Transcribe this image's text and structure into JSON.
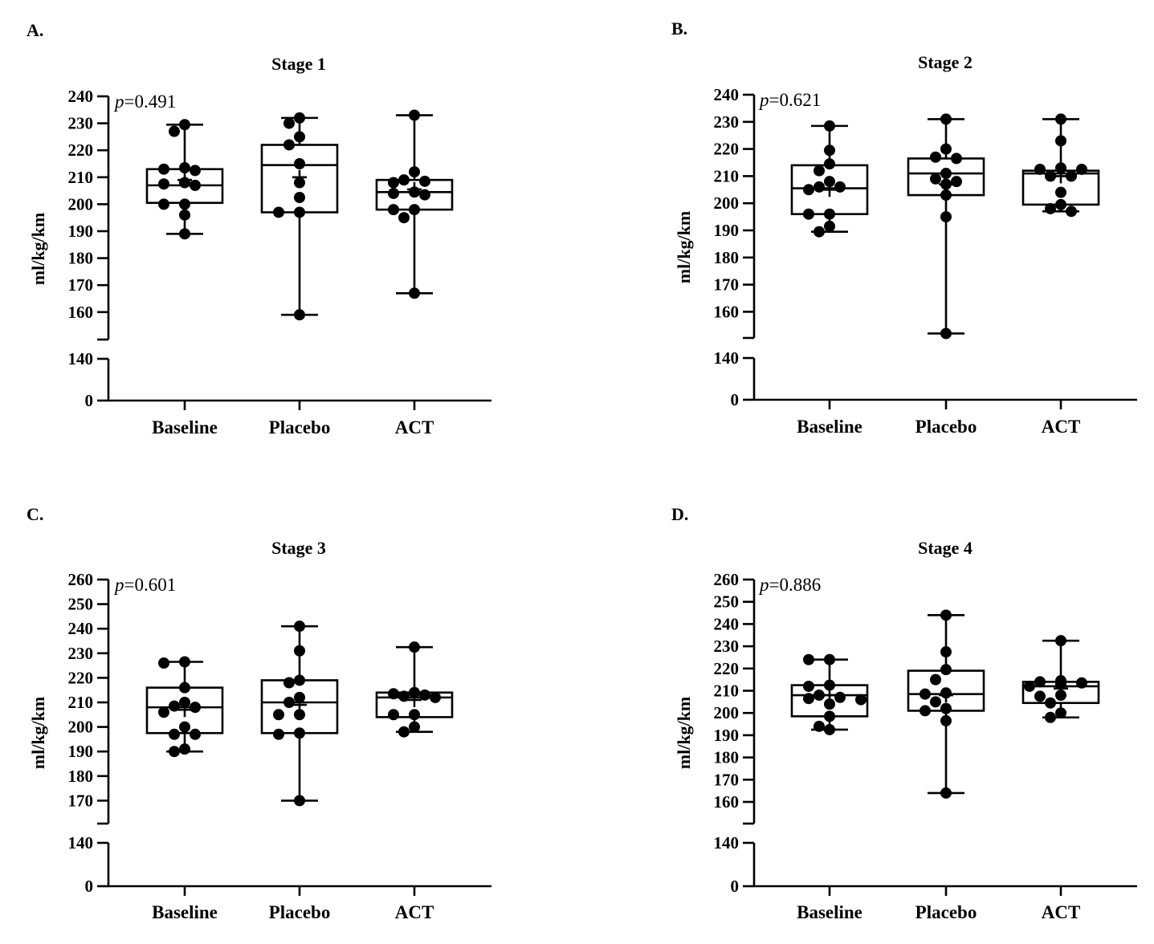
{
  "figure": {
    "name": "stage-boxplots-figure"
  },
  "chart_data": [
    {
      "panel": "A.",
      "type": "box",
      "title": "Stage 1",
      "ylabel": "ml/kg/km",
      "p_prefix": "p",
      "p_value": "=0.491",
      "categories": [
        "Baseline",
        "Placebo",
        "ACT"
      ],
      "axis_break": true,
      "lower_ticks": [
        0,
        140
      ],
      "upper_ticks": [
        160,
        170,
        180,
        190,
        200,
        210,
        220,
        230,
        240
      ],
      "upper_range": [
        150,
        240
      ],
      "groups": [
        {
          "name": "Baseline",
          "min": 189,
          "q1": 200.5,
          "median": 207,
          "q3": 213,
          "max": 229.5,
          "mean": 209,
          "points": [
            229.5,
            227,
            213.5,
            213,
            212.5,
            208,
            207.5,
            207,
            200,
            200,
            196,
            189
          ]
        },
        {
          "name": "Placebo",
          "min": 159,
          "q1": 197,
          "median": 214.5,
          "q3": 222,
          "max": 232,
          "mean": 210,
          "points": [
            232,
            230,
            225,
            222,
            215,
            208,
            202.5,
            197,
            197,
            159
          ]
        },
        {
          "name": "ACT",
          "min": 167,
          "q1": 198,
          "median": 204.5,
          "q3": 209,
          "max": 233,
          "mean": 205.5,
          "points": [
            233,
            212,
            209,
            208.5,
            208,
            204.5,
            204,
            203.5,
            198,
            198,
            195,
            167
          ]
        }
      ]
    },
    {
      "panel": "B.",
      "type": "box",
      "title": "Stage 2",
      "ylabel": "ml/kg/km",
      "p_prefix": "p",
      "p_value": "=0.621",
      "categories": [
        "Baseline",
        "Placebo",
        "ACT"
      ],
      "axis_break": true,
      "lower_ticks": [
        0,
        140
      ],
      "upper_ticks": [
        160,
        170,
        180,
        190,
        200,
        210,
        220,
        230,
        240
      ],
      "upper_range": [
        150,
        240
      ],
      "groups": [
        {
          "name": "Baseline",
          "min": 189.5,
          "q1": 196,
          "median": 205.5,
          "q3": 214,
          "max": 228.5,
          "mean": 205,
          "points": [
            228.5,
            219.5,
            214.5,
            212,
            208,
            206,
            206,
            205,
            196,
            196,
            191.5,
            189.5
          ]
        },
        {
          "name": "Placebo",
          "min": 152,
          "q1": 203,
          "median": 211,
          "q3": 216.5,
          "max": 231,
          "mean": 207,
          "points": [
            231,
            220,
            217,
            216.5,
            211,
            209,
            208,
            207,
            203,
            195,
            152
          ]
        },
        {
          "name": "ACT",
          "min": 197,
          "q1": 199.5,
          "median": 211,
          "q3": 212,
          "max": 231,
          "mean": 210,
          "points": [
            231,
            223,
            213,
            212.5,
            212.5,
            210,
            210,
            204,
            199.5,
            198,
            197
          ]
        }
      ]
    },
    {
      "panel": "C.",
      "type": "box",
      "title": "Stage 3",
      "ylabel": "ml/kg/km",
      "p_prefix": "p",
      "p_value": "=0.601",
      "categories": [
        "Baseline",
        "Placebo",
        "ACT"
      ],
      "axis_break": true,
      "lower_ticks": [
        0,
        140
      ],
      "upper_ticks": [
        170,
        180,
        190,
        200,
        210,
        220,
        230,
        240,
        250,
        260
      ],
      "upper_range": [
        160,
        260
      ],
      "groups": [
        {
          "name": "Baseline",
          "min": 190,
          "q1": 197.5,
          "median": 208,
          "q3": 216,
          "max": 226.5,
          "mean": 207,
          "points": [
            226.5,
            226,
            216,
            210,
            208.5,
            208,
            206,
            200,
            197,
            197,
            191,
            190
          ]
        },
        {
          "name": "Placebo",
          "min": 170,
          "q1": 197.5,
          "median": 210,
          "q3": 219,
          "max": 241,
          "mean": 209,
          "points": [
            241,
            231,
            219,
            218,
            212,
            210,
            205,
            205,
            197.5,
            197,
            170
          ]
        },
        {
          "name": "ACT",
          "min": 198,
          "q1": 204,
          "median": 212,
          "q3": 214,
          "max": 232.5,
          "mean": 211,
          "points": [
            232.5,
            214,
            213.5,
            213,
            212.5,
            212,
            205,
            205,
            200,
            198
          ]
        }
      ]
    },
    {
      "panel": "D.",
      "type": "box",
      "title": "Stage 4",
      "ylabel": "ml/kg/km",
      "p_prefix": "p",
      "p_value": "=0.886",
      "categories": [
        "Baseline",
        "Placebo",
        "ACT"
      ],
      "axis_break": true,
      "lower_ticks": [
        0,
        140
      ],
      "upper_ticks": [
        160,
        170,
        180,
        190,
        200,
        210,
        220,
        230,
        240,
        250,
        260
      ],
      "upper_range": [
        150,
        260
      ],
      "groups": [
        {
          "name": "Baseline",
          "min": 192.5,
          "q1": 198.5,
          "median": 208,
          "q3": 212.5,
          "max": 224,
          "mean": 208,
          "points": [
            224,
            224,
            212.5,
            212,
            208,
            207,
            206.5,
            206,
            204,
            198.5,
            194,
            192.5
          ]
        },
        {
          "name": "Placebo",
          "min": 164,
          "q1": 201,
          "median": 208.5,
          "q3": 219,
          "max": 244,
          "mean": 208,
          "points": [
            244,
            227.5,
            219.5,
            215,
            209,
            208.5,
            205,
            202,
            201,
            196.5,
            164
          ]
        },
        {
          "name": "ACT",
          "min": 198,
          "q1": 204.5,
          "median": 212,
          "q3": 214,
          "max": 232.5,
          "mean": 211,
          "points": [
            232.5,
            214.5,
            214,
            213.5,
            213,
            212,
            208,
            207.5,
            204.5,
            200,
            198
          ]
        }
      ]
    }
  ]
}
